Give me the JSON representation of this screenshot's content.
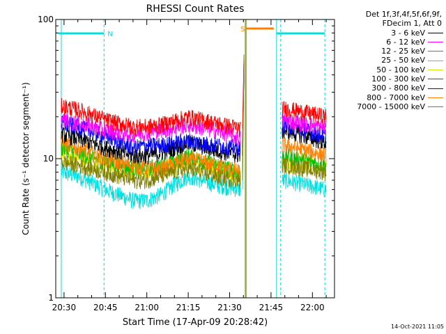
{
  "chart_data": {
    "type": "line",
    "title": "RHESSI Count Rates",
    "xlabel": "Start Time (17-Apr-09 20:28:42)",
    "ylabel": "Count Rate (s⁻¹ detector segment⁻¹)",
    "y_scale": "log",
    "xlim": [
      "20:27",
      "22:08"
    ],
    "ylim": [
      1,
      100
    ],
    "x_ticks": [
      "20:30",
      "20:45",
      "21:00",
      "21:15",
      "21:30",
      "21:45",
      "22:00"
    ],
    "y_ticks": [
      "1",
      "10",
      "100"
    ],
    "legend_title": [
      "Det 1f,3f,4f,5f,6f,9f,",
      "FDecim 1, Att 0"
    ],
    "legend_position": "outside-right",
    "series": [
      {
        "name": "3 - 6 keV",
        "color": "#000000",
        "x": [
          "20:29",
          "20:35",
          "20:45",
          "20:55",
          "21:00",
          "21:05",
          "21:15",
          "21:25",
          "21:34",
          "21:50",
          "22:05"
        ],
        "values": [
          15.0,
          14.0,
          12.0,
          10.5,
          10.5,
          11.0,
          13.0,
          11.5,
          10.5,
          16.0,
          13.0
        ]
      },
      {
        "name": "6 - 12 keV",
        "color": "#ff00ff",
        "x": [
          "20:29",
          "20:35",
          "20:45",
          "20:55",
          "21:00",
          "21:05",
          "21:15",
          "21:25",
          "21:34",
          "21:50",
          "22:05"
        ],
        "values": [
          19.0,
          18.0,
          16.0,
          15.0,
          15.5,
          16.0,
          17.5,
          16.0,
          14.0,
          19.0,
          16.5
        ]
      },
      {
        "name": "12 - 25 keV",
        "color": "#00c000",
        "x": [
          "20:29",
          "20:35",
          "20:45",
          "20:55",
          "21:00",
          "21:05",
          "21:15",
          "21:25",
          "21:34",
          "21:50",
          "22:05"
        ],
        "values": [
          12.0,
          11.0,
          9.5,
          8.5,
          8.5,
          9.0,
          10.5,
          9.0,
          8.0,
          10.5,
          9.0
        ]
      },
      {
        "name": "25 - 50 keV",
        "color": "#00e0e0",
        "x": [
          "20:29",
          "20:35",
          "20:45",
          "20:55",
          "21:00",
          "21:05",
          "21:15",
          "21:25",
          "21:34",
          "21:50",
          "22:05"
        ],
        "values": [
          8.0,
          7.5,
          6.0,
          5.0,
          5.0,
          5.5,
          7.5,
          6.5,
          6.0,
          7.0,
          6.0
        ]
      },
      {
        "name": "50 - 100 keV",
        "color": "#e0e000",
        "x": [
          "20:29",
          "20:35",
          "20:45",
          "20:55",
          "21:00",
          "21:05",
          "21:15",
          "21:25",
          "21:34",
          "21:50",
          "22:05"
        ],
        "values": [
          11.0,
          10.5,
          9.0,
          8.0,
          8.0,
          8.5,
          9.5,
          8.5,
          7.5,
          9.5,
          8.5
        ]
      },
      {
        "name": "100 - 300 keV",
        "color": "#ff0000",
        "x": [
          "20:29",
          "20:35",
          "20:45",
          "20:55",
          "21:00",
          "21:05",
          "21:15",
          "21:25",
          "21:34",
          "21:50",
          "22:05"
        ],
        "values": [
          24.0,
          22.5,
          19.0,
          17.0,
          17.0,
          17.5,
          20.0,
          18.0,
          16.5,
          23.0,
          20.0
        ]
      },
      {
        "name": "300 - 800 keV",
        "color": "#0000ff",
        "x": [
          "20:29",
          "20:35",
          "20:45",
          "20:55",
          "21:00",
          "21:05",
          "21:15",
          "21:25",
          "21:34",
          "21:50",
          "22:05"
        ],
        "values": [
          18.0,
          17.0,
          14.5,
          12.0,
          12.5,
          12.5,
          13.5,
          12.5,
          12.0,
          17.5,
          14.5
        ]
      },
      {
        "name": "800 - 7000 keV",
        "color": "#ff8000",
        "x": [
          "20:29",
          "20:35",
          "20:45",
          "20:55",
          "21:00",
          "21:05",
          "21:15",
          "21:25",
          "21:34",
          "21:50",
          "22:05"
        ],
        "values": [
          13.0,
          12.0,
          10.0,
          9.0,
          8.5,
          8.5,
          10.0,
          9.0,
          8.0,
          12.5,
          10.5
        ]
      },
      {
        "name": "7000 - 15000 keV",
        "color": "#808000",
        "x": [
          "20:29",
          "20:35",
          "20:45",
          "20:55",
          "21:00",
          "21:05",
          "21:15",
          "21:25",
          "21:34",
          "21:50",
          "22:05"
        ],
        "values": [
          9.5,
          9.0,
          8.0,
          7.0,
          7.0,
          7.5,
          8.5,
          7.5,
          7.0,
          9.0,
          8.0
        ]
      }
    ],
    "flags": [
      {
        "label": "N",
        "color": "#00e0e0",
        "start": "20:28",
        "end": "20:44:30"
      },
      {
        "label": "",
        "color": "#00e0e0",
        "start": "21:47",
        "end": "22:04:30"
      },
      {
        "label": "S",
        "color": "#ff8000",
        "start": "21:36",
        "end": "21:46"
      }
    ],
    "footnote": "14-Oct-2021 11:05"
  }
}
